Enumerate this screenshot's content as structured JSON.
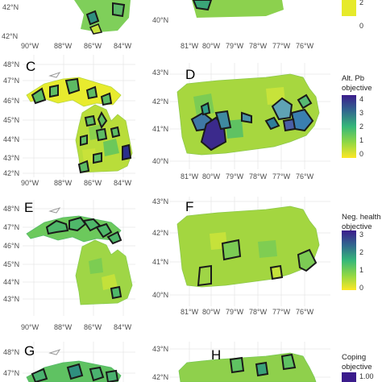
{
  "panels": {
    "C": {
      "label": "C"
    },
    "D": {
      "label": "D"
    },
    "E": {
      "label": "E"
    },
    "F": {
      "label": "F"
    },
    "G": {
      "label": "G"
    },
    "H": {
      "label": "H"
    }
  },
  "mi_axis": {
    "lat_top": [
      "42°N"
    ],
    "lat": [
      "48°N",
      "47°N",
      "46°N",
      "45°N",
      "44°N",
      "43°N",
      "42°N"
    ],
    "lon": [
      "90°W",
      "88°W",
      "86°W",
      "84°W"
    ],
    "lat_bottom": [
      "48°N",
      "47°N"
    ]
  },
  "pa_axis": {
    "lat_top": [
      "40°N"
    ],
    "lat": [
      "43°N",
      "42°N",
      "41°N",
      "40°N"
    ],
    "lon": [
      "81°W",
      "80°W",
      "79°W",
      "78°W",
      "77°W",
      "76°W"
    ],
    "lat_bottom": [
      "43°N",
      "42°N"
    ]
  },
  "legends": {
    "top": {
      "ticks": [
        "2",
        "0"
      ]
    },
    "d": {
      "title_line1": "Alt. Pb",
      "title_line2": "objective",
      "ticks": [
        "4",
        "3",
        "2",
        "1",
        "0"
      ]
    },
    "f": {
      "title_line1": "Neg. health",
      "title_line2": "objective",
      "ticks": [
        "3",
        "2",
        "1",
        "0"
      ]
    },
    "h": {
      "title_line1": "Coping",
      "title_line2": "objective",
      "ticks": [
        "1.00"
      ]
    }
  },
  "colors": {
    "low": "#f5f02a",
    "mid": "#5ec566",
    "high": "#3b1f8a",
    "outline": "#1a1a1a",
    "grid": "#e6e6e6"
  }
}
